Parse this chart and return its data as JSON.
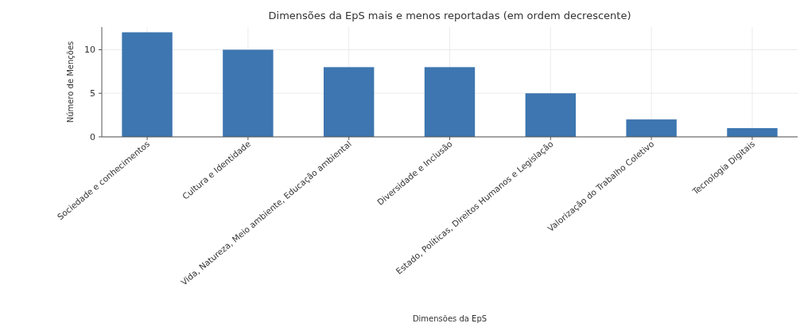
{
  "chart_data": {
    "type": "bar",
    "title": "Dimensões da EpS mais e menos reportadas (em ordem decrescente)",
    "xlabel": "Dimensões da EpS",
    "ylabel": "Número de Menções",
    "categories": [
      "Sociedade e conhecimentos",
      "Cultura e Identidade",
      "Vida, Natureza, Meio ambiente, Educação ambiental",
      "Diversidade e Inclusão",
      "Estado, Políticas, Direitos Humanos e Legislação",
      "Valorização do Trabalho Coletivo",
      "Tecnologia Digitais"
    ],
    "values": [
      12,
      10,
      8,
      8,
      5,
      2,
      1
    ],
    "color": "#3d76b0",
    "ylim": [
      0,
      12.6
    ],
    "yticks": [
      0,
      5,
      10
    ],
    "grid": true
  }
}
